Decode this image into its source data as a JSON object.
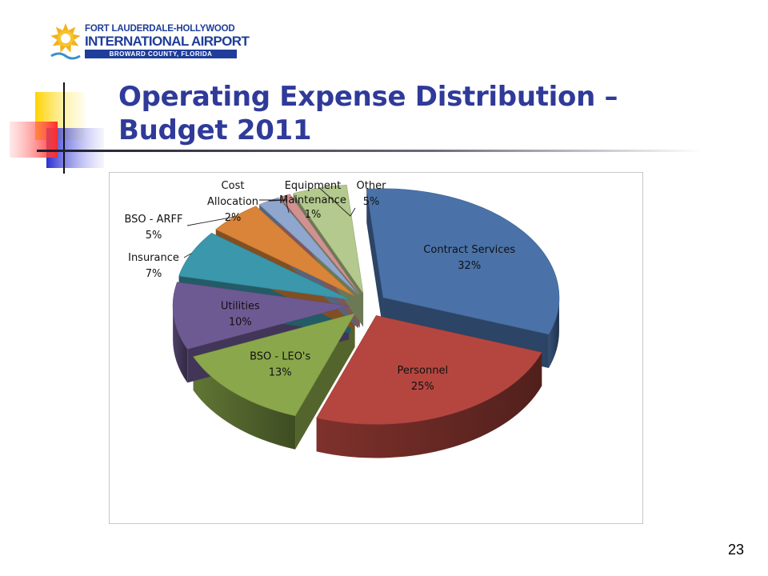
{
  "logo": {
    "line1": "FORT LAUDERDALE-HOLLYWOOD",
    "line2": "INTERNATIONAL AIRPORT",
    "line3": "BROWARD COUNTY, FLORIDA"
  },
  "slide": {
    "title_line1": "Operating Expense Distribution –",
    "title_line2": "Budget 2011",
    "number": "23"
  },
  "chart_data": {
    "type": "pie",
    "title": "",
    "three_d": true,
    "exploded": true,
    "slices": [
      {
        "label": "Contract Services",
        "value": 32,
        "display": "32%",
        "color": "#4a72a9"
      },
      {
        "label": "Personnel",
        "value": 25,
        "display": "25%",
        "color": "#b5463f"
      },
      {
        "label": "BSO - LEO's",
        "value": 13,
        "display": "13%",
        "color": "#8aa84b"
      },
      {
        "label": "Utilities",
        "value": 10,
        "display": "10%",
        "color": "#6e5a93"
      },
      {
        "label": "Insurance",
        "value": 7,
        "display": "7%",
        "color": "#3b97ab"
      },
      {
        "label": "BSO - ARFF",
        "value": 5,
        "display": "5%",
        "color": "#d98438"
      },
      {
        "label": "Cost Allocation",
        "value": 2,
        "display": "2%",
        "color": "#8fa6cf"
      },
      {
        "label": "Equipment Maintenance",
        "value": 1,
        "display": "1%",
        "color": "#d29191"
      },
      {
        "label": "Other",
        "value": 5,
        "display": "5%",
        "color": "#b4c98d"
      }
    ]
  }
}
